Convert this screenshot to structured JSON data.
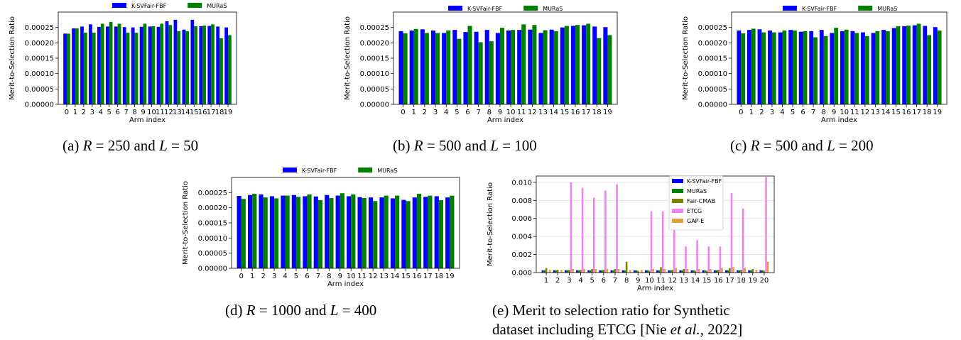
{
  "figure": {
    "captions": [
      {
        "label": "(a)",
        "r": "250",
        "l": "50"
      },
      {
        "label": "(b)",
        "r": "500",
        "l": "100"
      },
      {
        "label": "(c)",
        "r": "500",
        "l": "200"
      },
      {
        "label": "(d)",
        "r": "1000",
        "l": "400"
      }
    ],
    "caption_e": {
      "line1": "(e) Merit to selection ratio for Synthetic",
      "line2_pre": "dataset including ETCG [Nie ",
      "line2_em": "et al.",
      "line2_post": ", 2022]"
    },
    "symbols": {
      "r": "R",
      "l": "L",
      "eq": " = ",
      "and": " and "
    }
  },
  "chart_data": [
    {
      "type": "bar",
      "xlabel": "Arm index",
      "ylabel": "Merit-to-Selection Ratio",
      "ylim": [
        0,
        0.0003
      ],
      "legend": "top-center",
      "grid": false,
      "categories": [
        "0",
        "1",
        "2",
        "3",
        "4",
        "5",
        "6",
        "7",
        "8",
        "9",
        "10",
        "11",
        "12",
        "13",
        "14",
        "15",
        "16",
        "17",
        "18",
        "19"
      ],
      "yticks": [
        "0.00000",
        "0.00005",
        "0.00010",
        "0.00015",
        "0.00020",
        "0.00025"
      ],
      "series": [
        {
          "name": "K-SVFair-FBF",
          "color": "#0000ff",
          "values": [
            0.00023,
            0.000247,
            0.000253,
            0.00026,
            0.000252,
            0.000253,
            0.000253,
            0.000251,
            0.00025,
            0.000252,
            0.000253,
            0.000252,
            0.00027,
            0.000275,
            0.000243,
            0.000275,
            0.000254,
            0.000255,
            0.000253,
            0.00025
          ]
        },
        {
          "name": "MURaS",
          "color": "#008000",
          "values": [
            0.00023,
            0.000247,
            0.000233,
            0.000233,
            0.000262,
            0.000268,
            0.000262,
            0.000233,
            0.000233,
            0.000262,
            0.000254,
            0.000262,
            0.000258,
            0.000238,
            0.000238,
            0.000254,
            0.000256,
            0.00026,
            0.000215,
            0.000225
          ]
        }
      ]
    },
    {
      "type": "bar",
      "xlabel": "Arm index",
      "ylabel": "Merit-to-Selection Ratio",
      "ylim": [
        0,
        0.0003
      ],
      "legend": "top-center",
      "grid": false,
      "categories": [
        "0",
        "1",
        "2",
        "3",
        "4",
        "5",
        "6",
        "7",
        "8",
        "9",
        "10",
        "11",
        "12",
        "13",
        "14",
        "15",
        "16",
        "17",
        "18",
        "19"
      ],
      "yticks": [
        "0.00000",
        "0.00005",
        "0.00010",
        "0.00015",
        "0.00020",
        "0.00025"
      ],
      "series": [
        {
          "name": "K-SVFair-FBF",
          "color": "#0000ff",
          "values": [
            0.000238,
            0.00024,
            0.000244,
            0.00024,
            0.000232,
            0.000242,
            0.000235,
            0.000236,
            0.000242,
            0.000232,
            0.00024,
            0.000242,
            0.000243,
            0.000232,
            0.000243,
            0.00025,
            0.000255,
            0.000257,
            0.000253,
            0.000251
          ]
        },
        {
          "name": "MURaS",
          "color": "#008000",
          "values": [
            0.000231,
            0.000245,
            0.000232,
            0.000232,
            0.00024,
            0.000213,
            0.000255,
            0.000202,
            0.000205,
            0.000249,
            0.000242,
            0.00026,
            0.000258,
            0.000241,
            0.000238,
            0.000255,
            0.000258,
            0.000262,
            0.000215,
            0.000225
          ]
        }
      ]
    },
    {
      "type": "bar",
      "xlabel": "Arm index",
      "ylabel": "Merit-to-Selection Ratio",
      "ylim": [
        0,
        0.0003
      ],
      "legend": "top-center",
      "grid": false,
      "categories": [
        "0",
        "1",
        "2",
        "3",
        "4",
        "5",
        "6",
        "7",
        "8",
        "9",
        "10",
        "11",
        "12",
        "13",
        "14",
        "15",
        "16",
        "17",
        "18",
        "19"
      ],
      "yticks": [
        "0.00000",
        "0.00005",
        "0.00010",
        "0.00015",
        "0.00020",
        "0.00025"
      ],
      "series": [
        {
          "name": "K-SVFair-FBF",
          "color": "#0000ff",
          "values": [
            0.00024,
            0.000242,
            0.000244,
            0.00024,
            0.000234,
            0.000242,
            0.000236,
            0.000238,
            0.000242,
            0.000232,
            0.000238,
            0.000238,
            0.000234,
            0.000232,
            0.000242,
            0.000248,
            0.000254,
            0.000257,
            0.000255,
            0.000251
          ]
        },
        {
          "name": "MURaS",
          "color": "#008000",
          "values": [
            0.000231,
            0.000246,
            0.000234,
            0.000234,
            0.00024,
            0.00024,
            0.000238,
            0.000218,
            0.000222,
            0.000249,
            0.000243,
            0.000232,
            0.000222,
            0.000238,
            0.000238,
            0.000254,
            0.000256,
            0.000262,
            0.000225,
            0.00024
          ]
        }
      ]
    },
    {
      "type": "bar",
      "xlabel": "Arm index",
      "ylabel": "Merit-to-Selection Ratio",
      "ylim": [
        0,
        0.0003
      ],
      "legend": "top-center",
      "grid": false,
      "categories": [
        "0",
        "1",
        "2",
        "3",
        "4",
        "5",
        "6",
        "7",
        "8",
        "9",
        "10",
        "11",
        "12",
        "13",
        "14",
        "15",
        "16",
        "17",
        "18",
        "19"
      ],
      "yticks": [
        "0.00000",
        "0.00005",
        "0.00010",
        "0.00015",
        "0.00020",
        "0.00025"
      ],
      "series": [
        {
          "name": "K-SVFair-FBF",
          "color": "#0000ff",
          "values": [
            0.000239,
            0.000242,
            0.000244,
            0.000238,
            0.00024,
            0.000242,
            0.000238,
            0.000237,
            0.000242,
            0.00024,
            0.000238,
            0.000235,
            0.000234,
            0.000234,
            0.000231,
            0.000226,
            0.000234,
            0.000236,
            0.000238,
            0.000234
          ]
        },
        {
          "name": "MURaS",
          "color": "#008000",
          "values": [
            0.000229,
            0.000246,
            0.000234,
            0.000231,
            0.00024,
            0.000236,
            0.000244,
            0.000225,
            0.000232,
            0.000248,
            0.000244,
            0.000232,
            0.000222,
            0.00024,
            0.00024,
            0.000222,
            0.000246,
            0.00024,
            0.000225,
            0.00024
          ]
        }
      ]
    },
    {
      "type": "bar",
      "xlabel": "Arm index",
      "ylabel": "Merit-to-Selection Ratio",
      "ylim": [
        0,
        0.0107
      ],
      "legend": "upper-middle",
      "grid": true,
      "categories": [
        "1",
        "2",
        "3",
        "4",
        "5",
        "6",
        "7",
        "8",
        "9",
        "10",
        "11",
        "12",
        "13",
        "14",
        "15",
        "16",
        "17",
        "18",
        "19",
        "20"
      ],
      "yticks": [
        "0.000",
        "0.002",
        "0.004",
        "0.006",
        "0.008",
        "0.010"
      ],
      "series": [
        {
          "name": "K-SVFair-FBF",
          "color": "#0000ff",
          "values": [
            0.00025,
            0.00025,
            0.00025,
            0.00025,
            0.00025,
            0.00025,
            0.00025,
            0.00025,
            0.00025,
            0.00025,
            0.00025,
            0.00025,
            0.00025,
            0.00025,
            0.00025,
            0.00025,
            0.00025,
            0.00025,
            0.00025,
            0.00025
          ]
        },
        {
          "name": "MURaS",
          "color": "#008000",
          "values": [
            0.00025,
            0.00025,
            0.00025,
            0.00025,
            0.00025,
            0.00025,
            0.00025,
            0.00025,
            0.00025,
            0.00025,
            0.00025,
            0.00025,
            0.00025,
            0.00025,
            0.00025,
            0.00025,
            0.00025,
            0.00025,
            0.00025,
            0.00025
          ]
        },
        {
          "name": "Fair-CMAB",
          "color": "#808000",
          "values": [
            0.0005,
            0.0003,
            0.0003,
            0.0003,
            0.0004,
            0.0003,
            0.0004,
            0.0012,
            0.0002,
            0.0002,
            0.0006,
            0.0003,
            0.0004,
            0.0002,
            0.0002,
            0.0003,
            0.0005,
            0.0003,
            0.0004,
            0.0002
          ]
        },
        {
          "name": "ETCG",
          "color": "#ee82ee",
          "values": [
            0,
            0,
            0.01,
            0.0094,
            0.0083,
            0.0091,
            0.0098,
            0,
            0,
            0.0068,
            0.0068,
            0.0053,
            0.0029,
            0.0036,
            0.0029,
            0.0029,
            0.0088,
            0.0071,
            0,
            0.0106
          ]
        },
        {
          "name": "GAP-E",
          "color": "#e0a040",
          "values": [
            0.0003,
            0.0003,
            0.0004,
            0.0004,
            0.0004,
            0.0004,
            0.0004,
            0.0003,
            0.0003,
            0.0004,
            0.0004,
            0.0005,
            0.0004,
            0.0004,
            0.0004,
            0.0005,
            0.0006,
            0.0005,
            0.0003,
            0.0012
          ]
        }
      ]
    }
  ]
}
